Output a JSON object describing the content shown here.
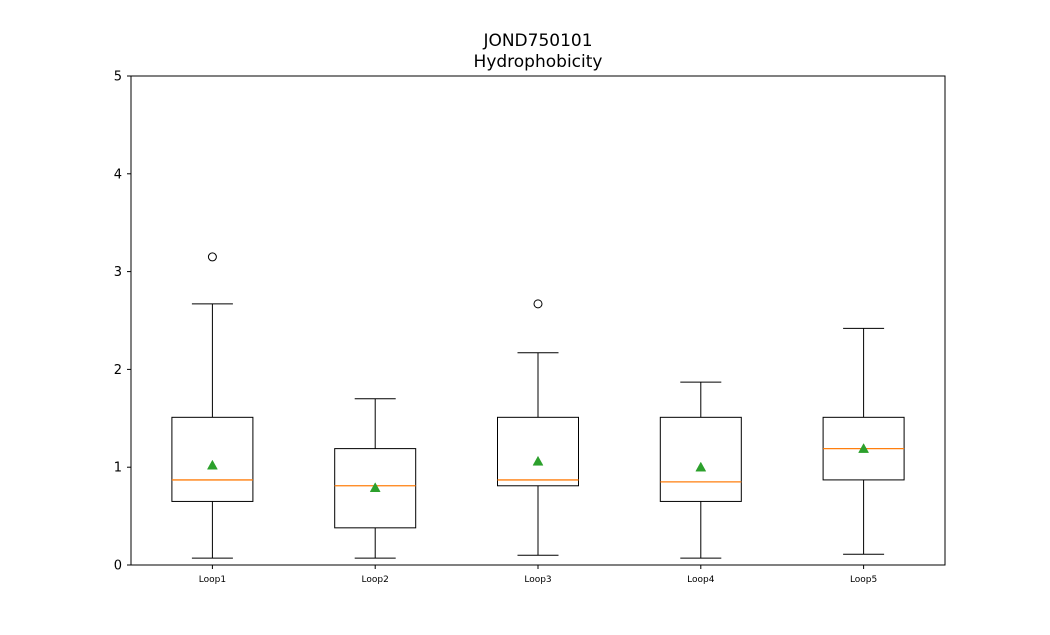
{
  "chart_data": {
    "type": "box",
    "title": "JOND750101",
    "subtitle": "Hydrophobicity",
    "xlabel": "",
    "ylabel": "",
    "ylim": [
      0,
      5
    ],
    "yticks": [
      0,
      1,
      2,
      3,
      4,
      5
    ],
    "grid": false,
    "categories": [
      "Loop1",
      "Loop2",
      "Loop3",
      "Loop4",
      "Loop5"
    ],
    "boxes": [
      {
        "category": "Loop1",
        "whisker_low": 0.07,
        "q1": 0.65,
        "median": 0.87,
        "q3": 1.51,
        "whisker_high": 2.67,
        "mean": 1.02,
        "outliers": [
          3.15
        ]
      },
      {
        "category": "Loop2",
        "whisker_low": 0.07,
        "q1": 0.38,
        "median": 0.81,
        "q3": 1.19,
        "whisker_high": 1.7,
        "mean": 0.79,
        "outliers": []
      },
      {
        "category": "Loop3",
        "whisker_low": 0.1,
        "q1": 0.81,
        "median": 0.87,
        "q3": 1.51,
        "whisker_high": 2.17,
        "mean": 1.06,
        "outliers": [
          2.67
        ]
      },
      {
        "category": "Loop4",
        "whisker_low": 0.07,
        "q1": 0.65,
        "median": 0.85,
        "q3": 1.51,
        "whisker_high": 1.87,
        "mean": 1.0,
        "outliers": []
      },
      {
        "category": "Loop5",
        "whisker_low": 0.11,
        "q1": 0.87,
        "median": 1.19,
        "q3": 1.51,
        "whisker_high": 2.42,
        "mean": 1.19,
        "outliers": []
      }
    ],
    "colors": {
      "box": "#000000",
      "median": "#ff7f0e",
      "mean": "#2ca02c",
      "outlier": "#000000"
    }
  }
}
